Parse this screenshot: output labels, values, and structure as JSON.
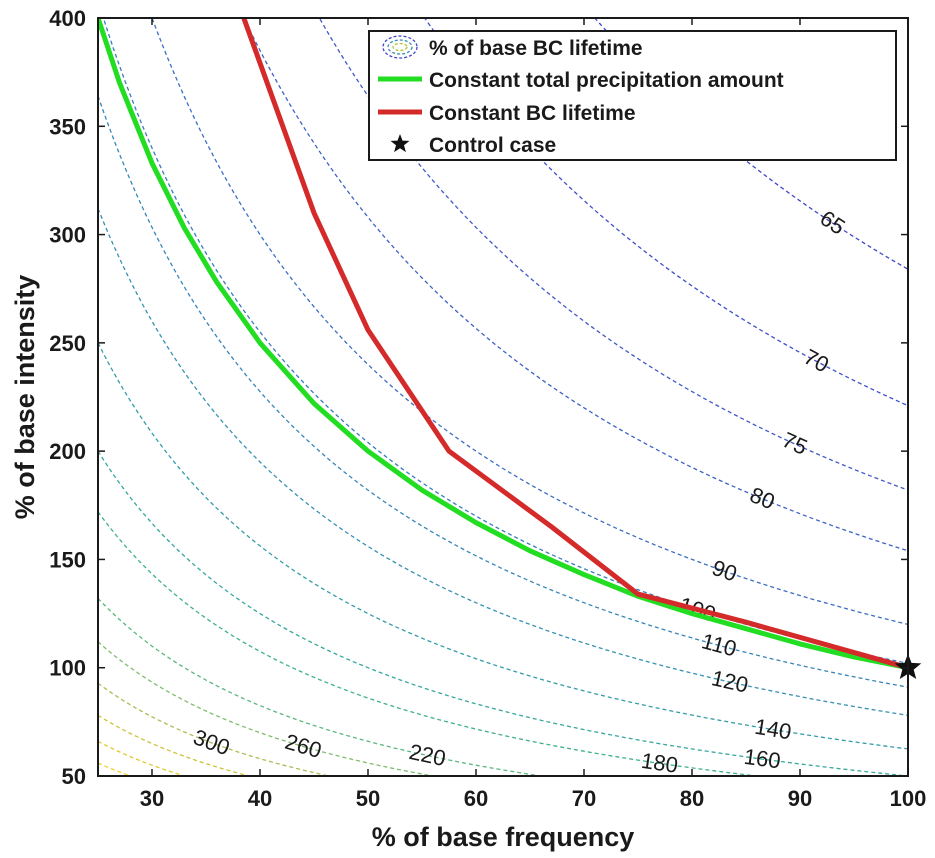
{
  "chart_data": {
    "type": "line",
    "xlabel": "% of base frequency",
    "ylabel": "% of base intensity",
    "xlim": [
      25,
      100
    ],
    "ylim": [
      50,
      400
    ],
    "xticks": [
      30,
      40,
      50,
      60,
      70,
      80,
      90,
      100
    ],
    "yticks": [
      50,
      100,
      150,
      200,
      250,
      300,
      350,
      400
    ],
    "grid": false,
    "legend_position": "top-right",
    "legend": [
      {
        "label": "% of base BC lifetime",
        "style": "contour-dashed"
      },
      {
        "label": "Constant total precipitation amount",
        "color": "#22dd22"
      },
      {
        "label": "Constant BC lifetime",
        "color": "#d42a2a"
      },
      {
        "label": "Control case",
        "marker": "star"
      }
    ],
    "series": [
      {
        "name": "Constant total precipitation amount",
        "color": "#22dd22",
        "x": [
          25,
          27,
          30,
          33,
          36,
          40,
          45,
          50,
          55,
          60,
          65,
          70,
          75,
          80,
          85,
          90,
          95,
          100
        ],
        "y": [
          400,
          370,
          333,
          303,
          278,
          250,
          222,
          200,
          182,
          167,
          154,
          143,
          133,
          125,
          118,
          111,
          105,
          100
        ]
      },
      {
        "name": "Constant BC lifetime",
        "color": "#d42a2a",
        "x": [
          38.5,
          45,
          50,
          57.5,
          67,
          75,
          85,
          100
        ],
        "y": [
          400,
          310,
          256,
          200,
          165,
          134,
          121,
          100
        ]
      }
    ],
    "control_case": {
      "x": 100,
      "y": 100
    },
    "contours": [
      {
        "level": 65,
        "k": 28400,
        "label_x": 93,
        "color": "#3d46c9"
      },
      {
        "level": 70,
        "k": 22100,
        "label_x": 91.5,
        "color": "#3f4fca"
      },
      {
        "level": 75,
        "k": 18200,
        "label_x": 89.5,
        "color": "#4159c9"
      },
      {
        "level": 80,
        "k": 15400,
        "label_x": 86.5,
        "color": "#3d63c5"
      },
      {
        "level": 90,
        "k": 12000,
        "label_x": 83,
        "color": "#3c6fc2"
      },
      {
        "level": 100,
        "k": 10200,
        "label_x": 80.5,
        "color": "#3a7cbe"
      },
      {
        "level": 110,
        "k": 9100,
        "label_x": 82.5,
        "color": "#3786b8"
      },
      {
        "level": 120,
        "k": 7800,
        "label_x": 83.5,
        "color": "#3691b2"
      },
      {
        "level": 140,
        "k": 6250,
        "label_x": 87.5,
        "color": "#349da9"
      },
      {
        "level": 160,
        "k": 5000,
        "label_x": 86.5,
        "color": "#36a89c"
      },
      {
        "level": 180,
        "k": 4300,
        "label_x": 77,
        "color": "#3fb08f"
      },
      {
        "level": 220,
        "k": 3300,
        "label_x": 55.5,
        "color": "#5bb77f"
      },
      {
        "level": 260,
        "k": 2800,
        "label_x": 44,
        "color": "#7fbc6c"
      },
      {
        "level": 300,
        "k": 2320,
        "label_x": 35.5,
        "color": "#a6bf55"
      },
      {
        "level": null,
        "k": 1950,
        "label_x": null,
        "color": "#c9c338"
      },
      {
        "level": null,
        "k": 1650,
        "label_x": null,
        "color": "#e1c830"
      },
      {
        "level": null,
        "k": 1400,
        "label_x": null,
        "color": "#f2d12b"
      }
    ]
  }
}
